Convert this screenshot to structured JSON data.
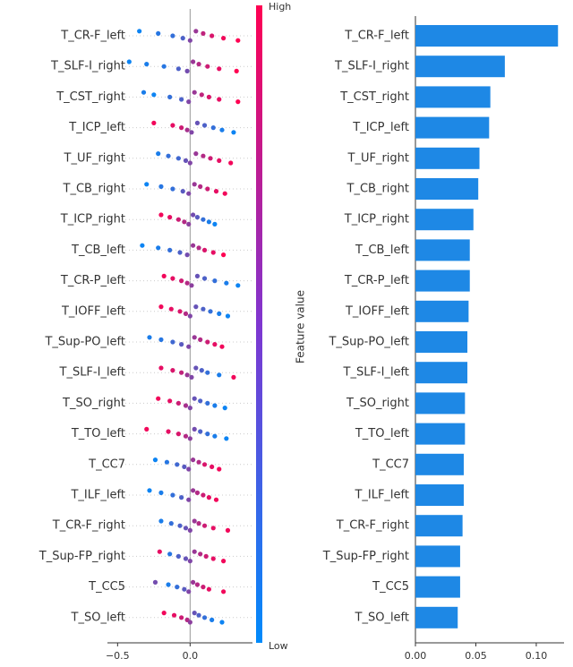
{
  "chart_data": [
    {
      "type": "beeswarm",
      "xlim": [
        -0.57,
        0.43
      ],
      "xticks": [
        {
          "value": -0.5,
          "label": "−0.5"
        },
        {
          "value": 0,
          "label": "0.0"
        }
      ],
      "colorbar": {
        "high": "High",
        "low": "Low",
        "label": "Feature value",
        "colors": [
          "#008bfb",
          "#ff0052"
        ]
      },
      "series": [
        {
          "name": "T_CR-F_left",
          "values": [
            -0.35,
            -0.22,
            -0.12,
            -0.05,
            0.0,
            0.04,
            0.09,
            0.15,
            0.23,
            0.33
          ],
          "feature_values": [
            0.05,
            0.15,
            0.2,
            0.3,
            0.5,
            0.6,
            0.75,
            0.85,
            0.95,
            1.0
          ]
        },
        {
          "name": "T_SLF-I_right",
          "values": [
            -0.42,
            -0.3,
            -0.18,
            -0.08,
            -0.02,
            0.02,
            0.06,
            0.12,
            0.2,
            0.32
          ],
          "feature_values": [
            0.05,
            0.1,
            0.15,
            0.3,
            0.45,
            0.6,
            0.7,
            0.8,
            0.9,
            1.0
          ]
        },
        {
          "name": "T_CST_right",
          "values": [
            -0.32,
            -0.25,
            -0.14,
            -0.06,
            -0.01,
            0.03,
            0.08,
            0.13,
            0.2,
            0.33
          ],
          "feature_values": [
            0.1,
            0.05,
            0.2,
            0.3,
            0.5,
            0.6,
            0.75,
            0.85,
            0.9,
            1.0
          ]
        },
        {
          "name": "T_ICP_left",
          "values": [
            -0.25,
            -0.12,
            -0.06,
            -0.02,
            0.01,
            0.05,
            0.1,
            0.16,
            0.22,
            0.3
          ],
          "feature_values": [
            0.95,
            0.9,
            0.8,
            0.65,
            0.5,
            0.4,
            0.3,
            0.2,
            0.1,
            0.05
          ]
        },
        {
          "name": "T_UF_right",
          "values": [
            -0.22,
            -0.15,
            -0.08,
            -0.03,
            0.0,
            0.04,
            0.09,
            0.14,
            0.2,
            0.28
          ],
          "feature_values": [
            0.1,
            0.2,
            0.25,
            0.4,
            0.5,
            0.6,
            0.7,
            0.8,
            0.9,
            0.95
          ]
        },
        {
          "name": "T_CB_right",
          "values": [
            -0.3,
            -0.2,
            -0.12,
            -0.05,
            -0.01,
            0.03,
            0.07,
            0.12,
            0.18,
            0.24
          ],
          "feature_values": [
            0.05,
            0.15,
            0.2,
            0.35,
            0.5,
            0.6,
            0.7,
            0.8,
            0.9,
            0.95
          ]
        },
        {
          "name": "T_ICP_right",
          "values": [
            -0.2,
            -0.14,
            -0.08,
            -0.04,
            -0.01,
            0.02,
            0.05,
            0.09,
            0.13,
            0.17
          ],
          "feature_values": [
            0.95,
            0.9,
            0.8,
            0.7,
            0.55,
            0.45,
            0.35,
            0.2,
            0.1,
            0.05
          ]
        },
        {
          "name": "T_CB_left",
          "values": [
            -0.33,
            -0.22,
            -0.14,
            -0.07,
            -0.02,
            0.02,
            0.06,
            0.1,
            0.16,
            0.23
          ],
          "feature_values": [
            0.05,
            0.1,
            0.2,
            0.3,
            0.45,
            0.6,
            0.7,
            0.85,
            0.9,
            1.0
          ]
        },
        {
          "name": "T_CR-P_left",
          "values": [
            -0.18,
            -0.12,
            -0.06,
            -0.02,
            0.01,
            0.05,
            0.1,
            0.17,
            0.25,
            0.33
          ],
          "feature_values": [
            0.95,
            0.9,
            0.8,
            0.7,
            0.55,
            0.4,
            0.3,
            0.2,
            0.1,
            0.05
          ]
        },
        {
          "name": "T_IOFF_left",
          "values": [
            -0.2,
            -0.13,
            -0.07,
            -0.03,
            0.0,
            0.04,
            0.09,
            0.14,
            0.2,
            0.26
          ],
          "feature_values": [
            0.95,
            0.9,
            0.85,
            0.7,
            0.5,
            0.4,
            0.3,
            0.2,
            0.1,
            0.05
          ]
        },
        {
          "name": "T_Sup-PO_left",
          "values": [
            -0.28,
            -0.2,
            -0.12,
            -0.06,
            -0.01,
            0.03,
            0.07,
            0.12,
            0.17,
            0.22
          ],
          "feature_values": [
            0.1,
            0.15,
            0.25,
            0.35,
            0.5,
            0.6,
            0.7,
            0.8,
            0.9,
            0.95
          ]
        },
        {
          "name": "T_SLF-I_left",
          "values": [
            -0.2,
            -0.12,
            -0.06,
            -0.02,
            0.01,
            0.04,
            0.08,
            0.12,
            0.2,
            0.3
          ],
          "feature_values": [
            0.9,
            0.85,
            0.75,
            0.6,
            0.5,
            0.4,
            0.3,
            0.2,
            0.1,
            0.95
          ]
        },
        {
          "name": "T_SO_right",
          "values": [
            -0.22,
            -0.14,
            -0.08,
            -0.03,
            0.0,
            0.03,
            0.07,
            0.12,
            0.17,
            0.24
          ],
          "feature_values": [
            0.95,
            0.9,
            0.8,
            0.65,
            0.5,
            0.4,
            0.3,
            0.2,
            0.1,
            0.05
          ]
        },
        {
          "name": "T_TO_left",
          "values": [
            -0.3,
            -0.15,
            -0.08,
            -0.03,
            0.0,
            0.03,
            0.07,
            0.12,
            0.17,
            0.25
          ],
          "feature_values": [
            0.95,
            0.9,
            0.85,
            0.7,
            0.55,
            0.45,
            0.3,
            0.2,
            0.1,
            0.05
          ]
        },
        {
          "name": "T_CC7",
          "values": [
            -0.24,
            -0.16,
            -0.09,
            -0.04,
            -0.01,
            0.02,
            0.06,
            0.1,
            0.15,
            0.2
          ],
          "feature_values": [
            0.05,
            0.15,
            0.25,
            0.35,
            0.5,
            0.6,
            0.7,
            0.85,
            0.9,
            0.95
          ]
        },
        {
          "name": "T_ILF_left",
          "values": [
            -0.28,
            -0.2,
            -0.12,
            -0.06,
            -0.01,
            0.02,
            0.05,
            0.09,
            0.13,
            0.18
          ],
          "feature_values": [
            0.05,
            0.1,
            0.2,
            0.3,
            0.5,
            0.6,
            0.7,
            0.8,
            0.9,
            0.95
          ]
        },
        {
          "name": "T_CR-F_right",
          "values": [
            -0.2,
            -0.13,
            -0.07,
            -0.03,
            0.0,
            0.03,
            0.06,
            0.1,
            0.16,
            0.26
          ],
          "feature_values": [
            0.1,
            0.2,
            0.3,
            0.4,
            0.5,
            0.6,
            0.7,
            0.8,
            0.9,
            0.95
          ]
        },
        {
          "name": "T_Sup-FP_right",
          "values": [
            -0.21,
            -0.14,
            -0.08,
            -0.03,
            0.0,
            0.03,
            0.07,
            0.11,
            0.16,
            0.23
          ],
          "feature_values": [
            0.9,
            0.15,
            0.3,
            0.4,
            0.5,
            0.6,
            0.7,
            0.8,
            0.9,
            0.95
          ]
        },
        {
          "name": "T_CC5",
          "values": [
            -0.24,
            -0.15,
            -0.09,
            -0.04,
            -0.01,
            0.02,
            0.05,
            0.09,
            0.13,
            0.23
          ],
          "feature_values": [
            0.45,
            0.1,
            0.2,
            0.35,
            0.5,
            0.6,
            0.7,
            0.8,
            0.9,
            0.95
          ]
        },
        {
          "name": "T_SO_left",
          "values": [
            -0.18,
            -0.11,
            -0.06,
            -0.02,
            0.0,
            0.03,
            0.06,
            0.1,
            0.15,
            0.22
          ],
          "feature_values": [
            0.95,
            0.9,
            0.8,
            0.7,
            0.55,
            0.4,
            0.3,
            0.2,
            0.1,
            0.05
          ]
        }
      ]
    },
    {
      "type": "bar",
      "categories": [
        "T_CR-F_left",
        "T_SLF-I_right",
        "T_CST_right",
        "T_ICP_left",
        "T_UF_right",
        "T_CB_right",
        "T_ICP_right",
        "T_CB_left",
        "T_CR-P_left",
        "T_IOFF_left",
        "T_Sup-PO_left",
        "T_SLF-I_left",
        "T_SO_right",
        "T_TO_left",
        "T_CC7",
        "T_ILF_left",
        "T_CR-F_right",
        "T_Sup-FP_right",
        "T_CC5",
        "T_SO_left"
      ],
      "values": [
        0.118,
        0.074,
        0.062,
        0.061,
        0.053,
        0.052,
        0.048,
        0.045,
        0.045,
        0.044,
        0.043,
        0.043,
        0.041,
        0.041,
        0.04,
        0.04,
        0.039,
        0.037,
        0.037,
        0.035
      ],
      "color": "#1e88e5",
      "xlim": [
        0,
        0.123
      ],
      "xticks": [
        {
          "value": 0,
          "label": "0.00"
        },
        {
          "value": 0.05,
          "label": "0.05"
        },
        {
          "value": 0.1,
          "label": "0.10"
        }
      ]
    }
  ]
}
